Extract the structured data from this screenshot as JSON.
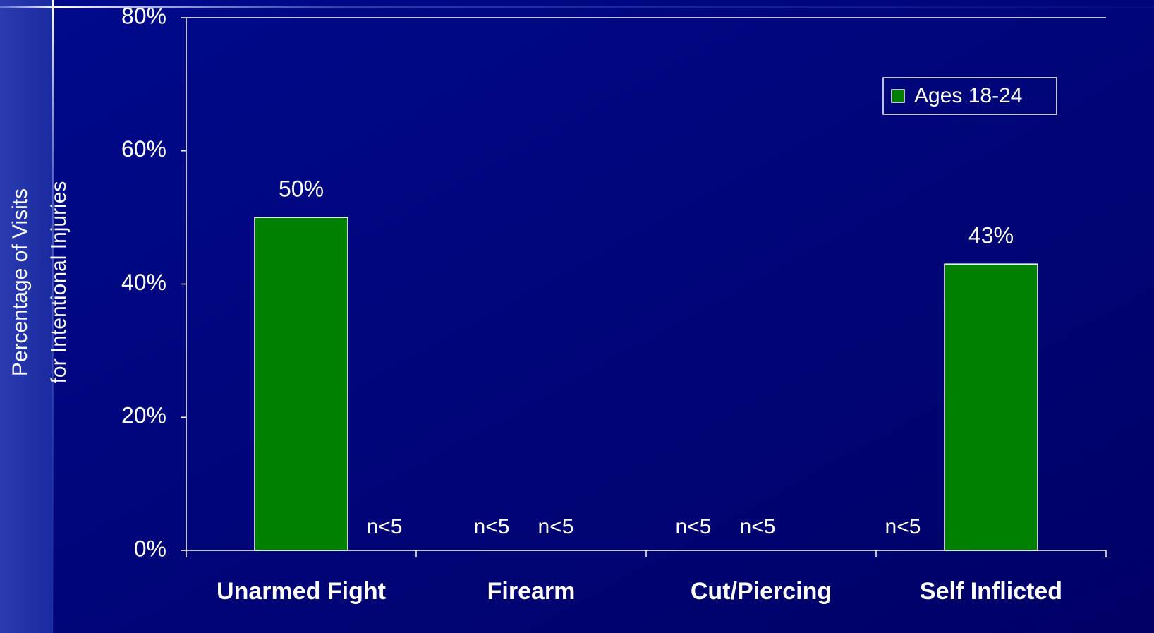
{
  "chart_data": {
    "type": "bar",
    "ylabel": [
      "Percentage of Visits",
      "for Intentional Injuries"
    ],
    "categories": [
      "Unarmed Fight",
      "Firearm",
      "Cut/Piercing",
      "Self Inflicted"
    ],
    "series": [
      {
        "name": "Ages 18-24",
        "color": "#008000",
        "values": [
          50,
          null,
          null,
          43
        ],
        "value_labels": [
          "50%",
          null,
          null,
          "43%"
        ]
      }
    ],
    "annotations": [
      "n<5",
      "n<5",
      "n<5",
      "n<5",
      "n<5",
      "n<5"
    ],
    "ylim": [
      0,
      80
    ],
    "yticks": [
      {
        "value": 0,
        "label": "0%"
      },
      {
        "value": 20,
        "label": "20%"
      },
      {
        "value": 40,
        "label": "40%"
      },
      {
        "value": 60,
        "label": "60%"
      },
      {
        "value": 80,
        "label": "80%"
      }
    ],
    "legend": "top-right"
  }
}
